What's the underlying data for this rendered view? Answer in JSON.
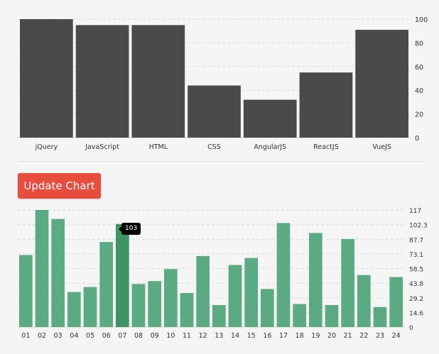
{
  "chart_data": [
    {
      "type": "bar",
      "categories": [
        "jQuery",
        "JavaScript",
        "HTML",
        "CSS",
        "AngularJS",
        "ReactJS",
        "VueJS"
      ],
      "values": [
        100,
        95,
        95,
        44,
        32,
        55,
        91
      ],
      "ylim": [
        0,
        100
      ],
      "yticks": [
        0,
        20,
        40,
        60,
        80,
        100
      ],
      "grid": true,
      "axis_side": "right",
      "color": "#4a4a4a"
    },
    {
      "type": "bar",
      "categories": [
        "01",
        "02",
        "03",
        "04",
        "05",
        "06",
        "07",
        "08",
        "09",
        "10",
        "11",
        "12",
        "13",
        "14",
        "15",
        "16",
        "17",
        "18",
        "19",
        "20",
        "21",
        "22",
        "23",
        "24"
      ],
      "values": [
        72,
        117,
        108,
        35,
        40,
        85,
        103,
        43,
        46,
        58,
        34,
        71,
        22,
        62,
        69,
        38,
        104,
        23,
        94,
        22,
        88,
        52,
        20,
        50
      ],
      "ylim": [
        0,
        117
      ],
      "yticks": [
        "0",
        "14.6",
        "29.2",
        "43.8",
        "58.5",
        "73.1",
        "87.7",
        "102.3",
        "117"
      ],
      "grid": true,
      "axis_side": "right",
      "color": "#5aab82",
      "highlight_color": "#3f9466",
      "highlighted_index": 6,
      "tooltip": "103"
    }
  ],
  "button": {
    "label": "Update Chart"
  }
}
